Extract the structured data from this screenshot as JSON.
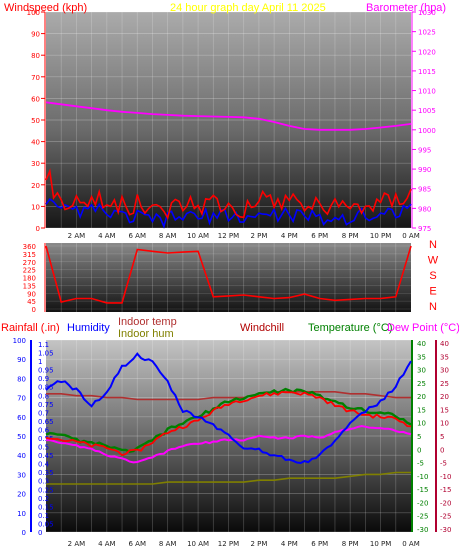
{
  "header": {
    "left": "Windspeed (kph)",
    "center": "24 hour graph day   April 11 2025",
    "right": "Barometer (hpa)"
  },
  "labels": {
    "rainfall": "Rainfall (.in)",
    "humidity": "Humidity",
    "indoor_temp": "Indoor temp",
    "indoor_hum": "Indoor hum",
    "windchill": "Windchill",
    "temperature": "Temperature (°C)",
    "dew_point": "Dew Point (°C)"
  },
  "colors": {
    "wind_speed": "#ff0000",
    "wind_gust": "#0000ff",
    "barometer": "#ff00ff",
    "wind_dir": "#ff0000",
    "humidity": "#0000ff",
    "temperature": "#ff0000",
    "windchill": "#008000",
    "dew_point": "#ff00ff",
    "indoor_temp": "#b03030",
    "indoor_hum": "#808000",
    "rain_axis": "#0000ff",
    "temp_axis": "#008000",
    "dew_axis": "#b00030"
  },
  "time_labels": [
    "2 AM",
    "4 AM",
    "6 AM",
    "8 AM",
    "10 AM",
    "12 PM",
    "2 PM",
    "4 PM",
    "6 PM",
    "8 PM",
    "10 PM",
    "0 AM"
  ],
  "chart_data": [
    {
      "type": "line",
      "title": "24 hour graph day   April 11 2025",
      "ylabel": "Windspeed (kph)",
      "y2label": "Barometer (hpa)",
      "ylim": [
        0,
        100
      ],
      "y2lim": [
        975,
        1030
      ],
      "yticks": [
        0,
        10,
        20,
        30,
        40,
        50,
        60,
        70,
        80,
        90,
        100
      ],
      "y2ticks": [
        975,
        980,
        985,
        990,
        995,
        1000,
        1005,
        1010,
        1015,
        1020,
        1025,
        1030
      ],
      "x": [
        0,
        1,
        2,
        3,
        4,
        5,
        6,
        7,
        8,
        9,
        10,
        11,
        12,
        13,
        14,
        15,
        16,
        17,
        18,
        19,
        20,
        21,
        22,
        23,
        24
      ],
      "series": [
        {
          "values": [
            25,
            12,
            13,
            14,
            12,
            10,
            11,
            8,
            9,
            12,
            11,
            13,
            10,
            9,
            12,
            12,
            14,
            11,
            10,
            9,
            10,
            11,
            12,
            13,
            18
          ]
        },
        {
          "values": [
            12,
            7,
            8,
            8,
            7,
            5,
            5,
            4,
            4,
            6,
            5,
            6,
            5,
            5,
            6,
            6,
            7,
            5,
            5,
            4,
            5,
            6,
            6,
            8,
            11
          ]
        },
        {
          "values": [
            1007,
            1006.5,
            1006,
            1005.5,
            1005,
            1004.6,
            1004.3,
            1004,
            1003.8,
            1003.6,
            1003.5,
            1003.4,
            1003.3,
            1003.2,
            1002.8,
            1002,
            1001,
            1000.2,
            1000,
            1000,
            1000,
            1000.2,
            1000.6,
            1001,
            1001.5
          ]
        }
      ]
    },
    {
      "type": "line",
      "ylabel": "N W S E N",
      "yticks": [
        0,
        45,
        90,
        135,
        180,
        225,
        270,
        315,
        360
      ],
      "direction_labels": [
        "N",
        "W",
        "S",
        "E",
        "N"
      ],
      "x": [
        0,
        1,
        2,
        3,
        4,
        5,
        6,
        7,
        8,
        9,
        10,
        11,
        12,
        13,
        14,
        15,
        16,
        17,
        18,
        19,
        20,
        21,
        22,
        23,
        24
      ],
      "series": [
        {
          "values": [
            360,
            40,
            60,
            60,
            35,
            35,
            340,
            330,
            320,
            325,
            330,
            70,
            75,
            80,
            70,
            60,
            65,
            85,
            60,
            50,
            55,
            60,
            60,
            70,
            360
          ]
        }
      ]
    },
    {
      "type": "line",
      "ylabel": "Humidity",
      "ylim": [
        0,
        100
      ],
      "yticks": [
        0,
        10,
        20,
        30,
        40,
        50,
        60,
        70,
        80,
        90,
        100
      ],
      "rain_ticks": [
        0,
        0.05,
        0.1,
        0.15,
        0.2,
        0.25,
        0.3,
        0.35,
        0.4,
        0.45,
        0.5,
        0.55,
        0.6,
        0.65,
        0.7,
        0.75,
        0.8,
        0.85,
        0.9,
        0.95,
        1,
        1.05,
        1.1
      ],
      "temp_ticks": [
        40,
        35,
        30,
        25,
        20,
        15,
        10,
        5,
        0,
        -5,
        -10,
        -15,
        -20,
        -25,
        -30
      ],
      "dew_ticks": [
        40,
        35,
        30,
        25,
        20,
        15,
        10,
        5,
        0,
        -5,
        -10,
        -15,
        -20,
        -25,
        -30
      ],
      "x": [
        0,
        1,
        2,
        3,
        4,
        5,
        6,
        7,
        8,
        9,
        10,
        11,
        12,
        13,
        14,
        15,
        16,
        17,
        18,
        19,
        20,
        21,
        22,
        23,
        24
      ],
      "series": [
        {
          "values": [
            74,
            79,
            74,
            66,
            73,
            86,
            92,
            88,
            78,
            63,
            60,
            56,
            50,
            44,
            43,
            40,
            38,
            36,
            40,
            48,
            56,
            63,
            68,
            76,
            89
          ]
        },
        {
          "values": [
            50,
            48,
            47,
            45,
            44,
            41,
            42,
            47,
            52,
            55,
            58,
            63,
            67,
            69,
            71,
            72,
            73,
            72,
            70,
            66,
            63,
            61,
            60,
            59,
            55
          ]
        },
        {
          "values": [
            51,
            50,
            48,
            46,
            45,
            42,
            43,
            48,
            53,
            57,
            60,
            64,
            68,
            70,
            72,
            73,
            74,
            73,
            71,
            68,
            65,
            63,
            62,
            61,
            56
          ]
        },
        {
          "values": [
            48,
            46,
            45,
            43,
            40,
            38,
            36,
            39,
            42,
            45,
            46,
            47,
            48,
            48,
            50,
            49,
            49,
            50,
            49,
            52,
            54,
            55,
            54,
            53,
            51
          ]
        },
        {
          "values": [
            72,
            72,
            71,
            71,
            70,
            70,
            69,
            69,
            69,
            69,
            69,
            70,
            70,
            70,
            72,
            73,
            73,
            73,
            73,
            73,
            72,
            72,
            71,
            70,
            70
          ]
        },
        {
          "values": [
            25,
            25,
            25,
            25,
            25,
            25,
            25,
            25,
            26,
            26,
            26,
            26,
            26,
            26,
            27,
            27,
            28,
            28,
            28,
            28,
            29,
            30,
            30,
            31,
            31
          ]
        }
      ]
    }
  ]
}
